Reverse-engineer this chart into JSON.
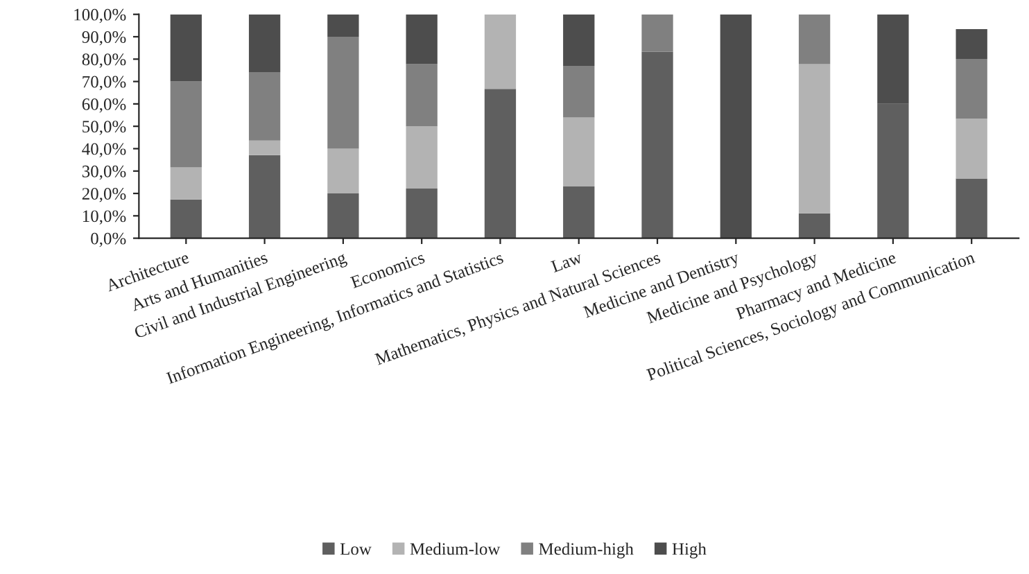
{
  "chart_data": {
    "type": "bar",
    "stacked": true,
    "categories": [
      "Architecture",
      "Arts and Humanities",
      "Civil and Industrial Engineering",
      "Economics",
      "Information Engineering, Informatics and Statistics",
      "Law",
      "Mathematics, Physics and Natural Sciences",
      "Medicine and Dentistry",
      "Medicine and Psychology",
      "Pharmacy and Medicine",
      "Political Sciences, Sociology and Communication"
    ],
    "series": [
      {
        "name": "Low",
        "color": "#5f5f5f",
        "values": [
          17.3,
          37.1,
          20,
          22.2,
          66.7,
          23.1,
          83.3,
          0,
          11.1,
          60,
          26.7
        ]
      },
      {
        "name": "Medium-low",
        "color": "#b3b3b3",
        "values": [
          14.3,
          6.5,
          20,
          27.8,
          33.3,
          30.8,
          0,
          0,
          66.7,
          0,
          26.7
        ]
      },
      {
        "name": "Medium-high",
        "color": "#808080",
        "values": [
          38.4,
          30.6,
          50,
          27.8,
          0,
          23.1,
          16.7,
          0,
          22.2,
          0,
          26.7
        ]
      },
      {
        "name": "High",
        "color": "#4d4d4d",
        "values": [
          30,
          25.8,
          10,
          22.2,
          0,
          23,
          0,
          100,
          0,
          40,
          13.3
        ]
      }
    ],
    "ylim": [
      0,
      100
    ],
    "yticks": [
      {
        "value": 0,
        "label": "0,0%"
      },
      {
        "value": 10,
        "label": "10,0%"
      },
      {
        "value": 20,
        "label": "20,0%"
      },
      {
        "value": 30,
        "label": "30,0%"
      },
      {
        "value": 40,
        "label": "40,0%"
      },
      {
        "value": 50,
        "label": "50,0%"
      },
      {
        "value": 60,
        "label": "60,0%"
      },
      {
        "value": 70,
        "label": "70,0%"
      },
      {
        "value": 80,
        "label": "80,0%"
      },
      {
        "value": 90,
        "label": "90,0%"
      },
      {
        "value": 100,
        "label": "100,0%"
      }
    ],
    "legend": "bottom",
    "grid": false
  }
}
